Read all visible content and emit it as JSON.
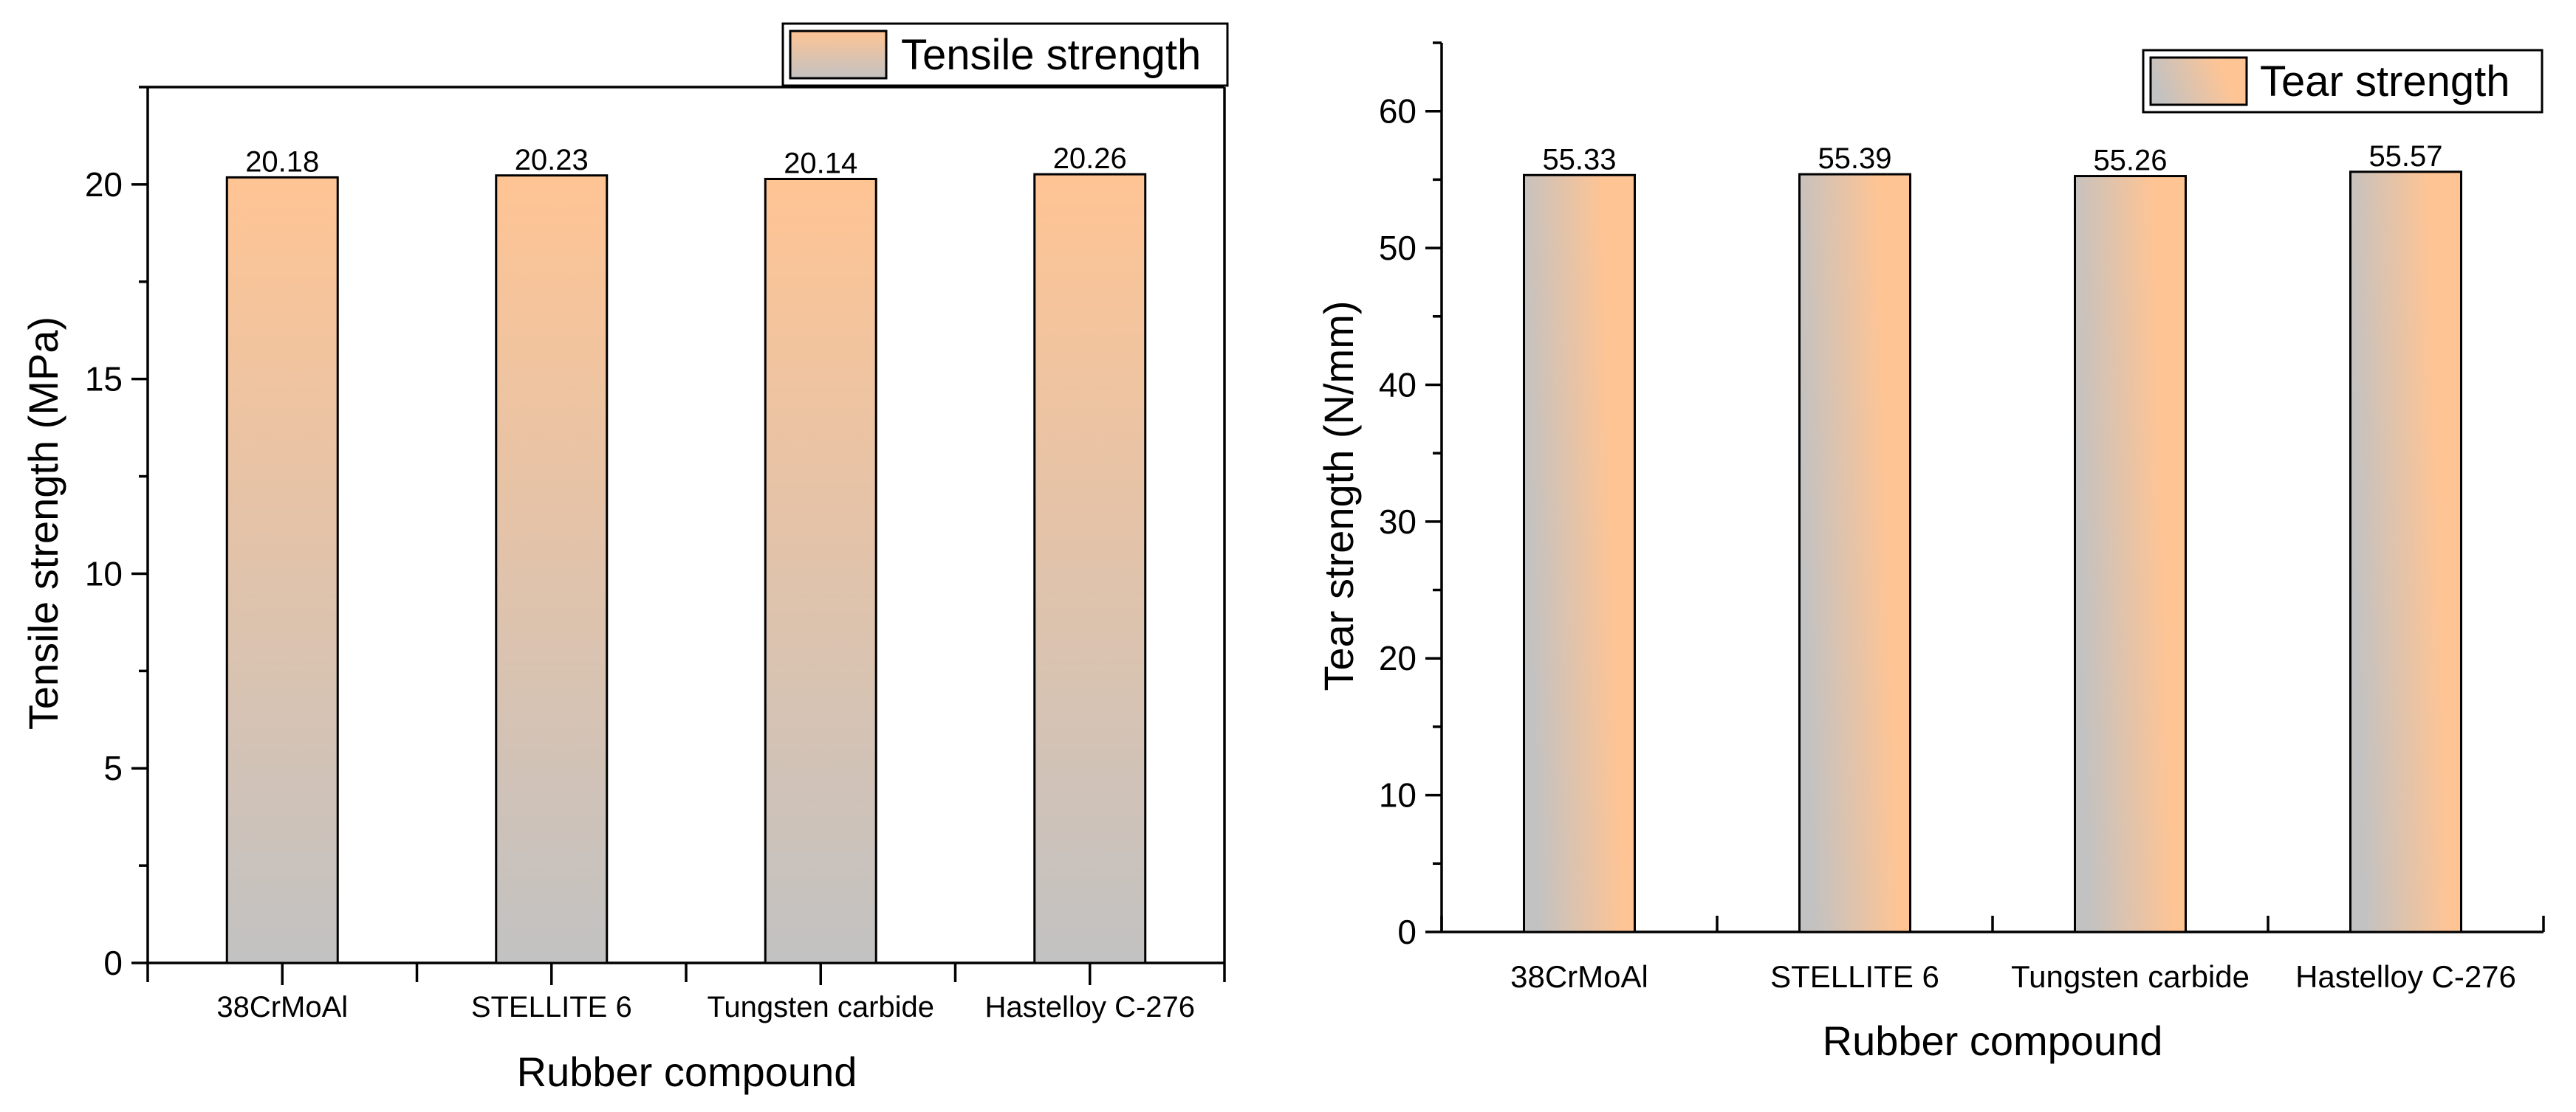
{
  "chart_data": [
    {
      "type": "bar",
      "categories": [
        "38CrMoAl",
        "STELLITE 6",
        "Tungsten carbide",
        "Hastelloy C-276"
      ],
      "series": [
        {
          "name": "Tensile strength",
          "values": [
            20.18,
            20.23,
            20.14,
            20.26
          ]
        }
      ],
      "data_labels": [
        "20.18",
        "20.23",
        "20.14",
        "20.26"
      ],
      "xlabel": "Rubber compound",
      "ylabel": "Tensile strength (MPa)",
      "ylim": [
        0,
        22.5
      ],
      "yticks": [
        0,
        5,
        10,
        15,
        20
      ],
      "ytick_labels": [
        "0",
        "5",
        "10",
        "15",
        "20"
      ],
      "axes_frame": "top-and-right-lines-drawn",
      "grid": false,
      "legend_position": "top-right",
      "bar_gradient": "vertical",
      "gradient_colors": [
        "#c2c2c2",
        "#ffc494"
      ]
    },
    {
      "type": "bar",
      "categories": [
        "38CrMoAl",
        "STELLITE 6",
        "Tungsten carbide",
        "Hastelloy C-276"
      ],
      "series": [
        {
          "name": "Tear strength",
          "values": [
            55.33,
            55.39,
            55.26,
            55.57
          ]
        }
      ],
      "data_labels": [
        "55.33",
        "55.39",
        "55.26",
        "55.57"
      ],
      "xlabel": "Rubber compound",
      "ylabel": "Tear strength (N/mm)",
      "ylim": [
        0,
        65
      ],
      "yticks": [
        0,
        10,
        20,
        30,
        40,
        50,
        60
      ],
      "ytick_labels": [
        "0",
        "10",
        "20",
        "30",
        "40",
        "50",
        "60"
      ],
      "axes_frame": "left-and-bottom-only",
      "grid": false,
      "legend_position": "top-right",
      "bar_gradient": "horizontal",
      "gradient_colors": [
        "#c2c2c2",
        "#ffc494"
      ]
    }
  ]
}
